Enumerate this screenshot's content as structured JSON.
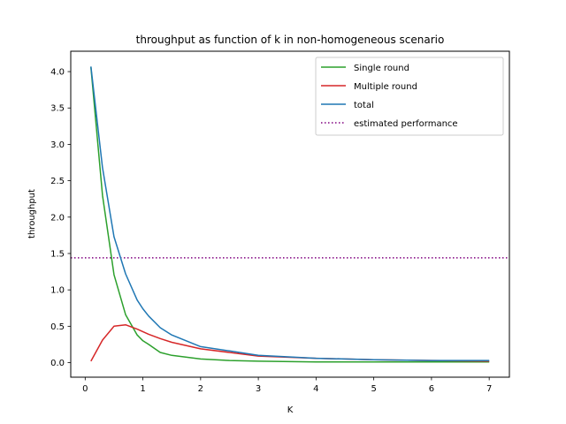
{
  "chart_data": {
    "type": "line",
    "title": "throughput as function of k in non-homogeneous scenario",
    "xlabel": "K",
    "ylabel": "throughput",
    "xlim": [
      -0.25,
      7.35
    ],
    "ylim": [
      -0.2,
      4.28
    ],
    "x_ticks": [
      "0",
      "1",
      "2",
      "3",
      "4",
      "5",
      "6",
      "7"
    ],
    "y_ticks": [
      "0.0",
      "0.5",
      "1.0",
      "1.5",
      "2.0",
      "2.5",
      "3.0",
      "3.5",
      "4.0"
    ],
    "grid": false,
    "legend_position": "top-right",
    "series": [
      {
        "name": "Single round",
        "color": "#2ca02c",
        "style": "solid",
        "x": [
          0.1,
          0.3,
          0.5,
          0.7,
          0.9,
          1.0,
          1.1,
          1.3,
          1.5,
          2.0,
          2.5,
          3.0,
          4.0,
          5.0,
          6.0,
          7.0
        ],
        "y": [
          4.06,
          2.3,
          1.21,
          0.66,
          0.38,
          0.3,
          0.25,
          0.14,
          0.1,
          0.05,
          0.03,
          0.02,
          0.01,
          0.01,
          0.01,
          0.01
        ]
      },
      {
        "name": "Multiple round",
        "color": "#d62728",
        "style": "solid",
        "x": [
          0.1,
          0.3,
          0.5,
          0.7,
          0.9,
          1.1,
          1.3,
          1.5,
          2.0,
          2.5,
          3.0,
          4.0,
          5.0,
          6.0,
          7.0
        ],
        "y": [
          0.02,
          0.31,
          0.5,
          0.52,
          0.46,
          0.39,
          0.33,
          0.28,
          0.19,
          0.14,
          0.09,
          0.06,
          0.04,
          0.03,
          0.02
        ]
      },
      {
        "name": "total",
        "color": "#1f77b4",
        "style": "solid",
        "x": [
          0.1,
          0.3,
          0.5,
          0.7,
          0.9,
          1.0,
          1.1,
          1.3,
          1.5,
          2.0,
          2.5,
          3.0,
          4.0,
          5.0,
          6.0,
          7.0
        ],
        "y": [
          4.07,
          2.68,
          1.73,
          1.22,
          0.86,
          0.74,
          0.64,
          0.48,
          0.38,
          0.22,
          0.16,
          0.1,
          0.06,
          0.04,
          0.03,
          0.03
        ]
      }
    ],
    "reference_lines": [
      {
        "name": "estimated performance",
        "orientation": "horizontal",
        "y": 1.44,
        "color": "#800080",
        "style": "dotted"
      }
    ]
  }
}
